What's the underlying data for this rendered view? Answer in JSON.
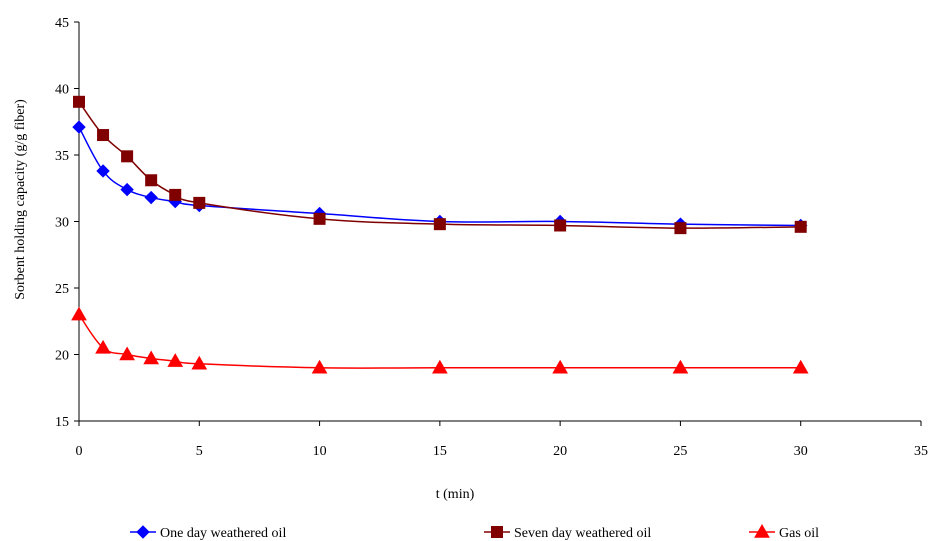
{
  "chart_data": {
    "type": "line",
    "title": "",
    "xlabel": "t (min)",
    "ylabel": "Sorbent holding capacity (g/g fiber)",
    "xlim": [
      0,
      35
    ],
    "ylim": [
      15,
      45
    ],
    "xticks": [
      0,
      5,
      10,
      15,
      20,
      25,
      30,
      35
    ],
    "yticks": [
      15,
      20,
      25,
      30,
      35,
      40,
      45
    ],
    "grid": false,
    "legend_position": "bottom",
    "series": [
      {
        "name": "One day weathered oil",
        "color": "#0000FF",
        "marker": "diamond",
        "x": [
          0,
          1,
          2,
          3,
          4,
          5,
          10,
          15,
          20,
          25,
          30
        ],
        "y": [
          37.1,
          33.8,
          32.4,
          31.8,
          31.5,
          31.2,
          30.6,
          30.0,
          30.0,
          29.8,
          29.7
        ]
      },
      {
        "name": "Seven day weathered oil",
        "color": "#800000",
        "marker": "square",
        "x": [
          0,
          1,
          2,
          3,
          4,
          5,
          10,
          15,
          20,
          25,
          30
        ],
        "y": [
          39.0,
          36.5,
          34.9,
          33.1,
          32.0,
          31.4,
          30.2,
          29.8,
          29.7,
          29.5,
          29.6
        ]
      },
      {
        "name": "Gas oil",
        "color": "#FF0000",
        "marker": "triangle",
        "x": [
          0,
          1,
          2,
          3,
          4,
          5,
          10,
          15,
          20,
          25,
          30
        ],
        "y": [
          23.0,
          20.5,
          20.0,
          19.7,
          19.5,
          19.3,
          19.0,
          19.0,
          19.0,
          19.0,
          19.0
        ]
      }
    ]
  }
}
